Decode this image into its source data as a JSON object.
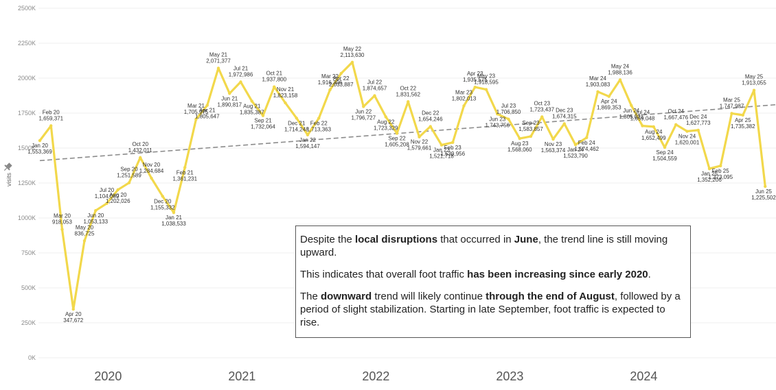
{
  "chart_data": {
    "type": "line",
    "ylabel": "visits",
    "ylim": [
      0,
      2500000
    ],
    "yticks": [
      "0K",
      "250K",
      "500K",
      "750K",
      "1000K",
      "1250K",
      "1500K",
      "1750K",
      "2000K",
      "2250K",
      "2500K"
    ],
    "x_year_labels": [
      "2020",
      "2021",
      "2022",
      "2023",
      "2024"
    ],
    "line_color": "#f2d84b",
    "trend_color": "#8c8c8c",
    "trend_line": {
      "start": 1410000,
      "end": 1810000
    },
    "series": [
      {
        "name": "visits",
        "points": [
          {
            "label": "Jan 20",
            "value": "1,553,369",
            "v": 1553369
          },
          {
            "label": "Feb 20",
            "value": "1,659,371",
            "v": 1659371
          },
          {
            "label": "Mar 20",
            "value": "918,053",
            "v": 918053
          },
          {
            "label": "Apr 20",
            "value": "347,672",
            "v": 347672
          },
          {
            "label": "May 20",
            "value": "836,725",
            "v": 836725
          },
          {
            "label": "Jun 20",
            "value": "1,053,133",
            "v": 1053133
          },
          {
            "label": "Jul 20",
            "value": "1,104,089",
            "v": 1104089
          },
          {
            "label": "Aug 20",
            "value": "1,202,026",
            "v": 1202026
          },
          {
            "label": "Sep 20",
            "value": "1,251,589",
            "v": 1251589
          },
          {
            "label": "Oct 20",
            "value": "1,432,011",
            "v": 1432011
          },
          {
            "label": "Nov 20",
            "value": "1,284,684",
            "v": 1284684
          },
          {
            "label": "Dec 20",
            "value": "1,155,332",
            "v": 1155332
          },
          {
            "label": "Jan 21",
            "value": "1,038,533",
            "v": 1038533
          },
          {
            "label": "Feb 21",
            "value": "1,361,231",
            "v": 1361231
          },
          {
            "label": "Mar 21",
            "value": "1,705,975",
            "v": 1705975
          },
          {
            "label": "Apr 21",
            "value": "1,805,647",
            "v": 1805647
          },
          {
            "label": "May 21",
            "value": "2,071,377",
            "v": 2071377
          },
          {
            "label": "Jun 21",
            "value": "1,890,817",
            "v": 1890817
          },
          {
            "label": "Jul 21",
            "value": "1,972,986",
            "v": 1972986
          },
          {
            "label": "Aug 21",
            "value": "1,835,387",
            "v": 1835387
          },
          {
            "label": "Sep 21",
            "value": "1,732,064",
            "v": 1732064
          },
          {
            "label": "Oct 21",
            "value": "1,937,800",
            "v": 1937800
          },
          {
            "label": "Nov 21",
            "value": "1,823,158",
            "v": 1823158
          },
          {
            "label": "Dec 21",
            "value": "1,714,248",
            "v": 1714248
          },
          {
            "label": "Jan 22",
            "value": "1,594,147",
            "v": 1594147
          },
          {
            "label": "Feb 22",
            "value": "1,713,363",
            "v": 1713363
          },
          {
            "label": "Mar 22",
            "value": "1,916,306",
            "v": 1916306
          },
          {
            "label": "Apr 22",
            "value": "2,033,887",
            "v": 2033887
          },
          {
            "label": "May 22",
            "value": "2,113,630",
            "v": 2113630
          },
          {
            "label": "Jun 22",
            "value": "1,796,727",
            "v": 1796727
          },
          {
            "label": "Jul 22",
            "value": "1,874,657",
            "v": 1874657
          },
          {
            "label": "Aug 22",
            "value": "1,723,329",
            "v": 1723329
          },
          {
            "label": "Sep 22",
            "value": "1,605,208",
            "v": 1605208
          },
          {
            "label": "Oct 22",
            "value": "1,831,562",
            "v": 1831562
          },
          {
            "label": "Nov 22",
            "value": "1,579,661",
            "v": 1579661
          },
          {
            "label": "Dec 22",
            "value": "1,654,246",
            "v": 1654246
          },
          {
            "label": "Jan 23",
            "value": "1,521,718",
            "v": 1521718
          },
          {
            "label": "Feb 23",
            "value": "1,539,956",
            "v": 1539956
          },
          {
            "label": "Mar 23",
            "value": "1,802,013",
            "v": 1802013
          },
          {
            "label": "Apr 23",
            "value": "1,935,575",
            "v": 1935575
          },
          {
            "label": "May 23",
            "value": "1,918,595",
            "v": 1918595
          },
          {
            "label": "Jun 23",
            "value": "1,743,756",
            "v": 1743756
          },
          {
            "label": "Jul 23",
            "value": "1,706,850",
            "v": 1706850
          },
          {
            "label": "Aug 23",
            "value": "1,568,060",
            "v": 1568060
          },
          {
            "label": "Sep 23",
            "value": "1,583,857",
            "v": 1583857
          },
          {
            "label": "Oct 23",
            "value": "1,723,437",
            "v": 1723437
          },
          {
            "label": "Nov 23",
            "value": "1,563,374",
            "v": 1563374
          },
          {
            "label": "Dec 23",
            "value": "1,674,315",
            "v": 1674315
          },
          {
            "label": "Jan 24",
            "value": "1,523,790",
            "v": 1523790
          },
          {
            "label": "Feb 24",
            "value": "1,574,462",
            "v": 1574462
          },
          {
            "label": "Mar 24",
            "value": "1,903,083",
            "v": 1903083
          },
          {
            "label": "Apr 24",
            "value": "1,869,353",
            "v": 1869353
          },
          {
            "label": "May 24",
            "value": "1,988,136",
            "v": 1988136
          },
          {
            "label": "Jun 24",
            "value": "1,805,031",
            "v": 1805031
          },
          {
            "label": "Jul 24",
            "value": "1,659,048",
            "v": 1659048
          },
          {
            "label": "Aug 24",
            "value": "1,652,499",
            "v": 1652499
          },
          {
            "label": "Sep 24",
            "value": "1,504,559",
            "v": 1504559
          },
          {
            "label": "Oct 24",
            "value": "1,667,476",
            "v": 1667476
          },
          {
            "label": "Nov 24",
            "value": "1,620,001",
            "v": 1620001
          },
          {
            "label": "Dec 24",
            "value": "1,627,773",
            "v": 1627773
          },
          {
            "label": "Jan 25",
            "value": "1,352,206",
            "v": 1352206
          },
          {
            "label": "Feb 25",
            "value": "1,373,095",
            "v": 1373095
          },
          {
            "label": "Mar 25",
            "value": "1,747,987",
            "v": 1747987
          },
          {
            "label": "Apr 25",
            "value": "1,735,382",
            "v": 1735382
          },
          {
            "label": "May 25",
            "value": "1,913,055",
            "v": 1913055
          },
          {
            "label": "Jun 25",
            "value": "1,225,502",
            "v": 1225502
          }
        ]
      }
    ]
  },
  "annotation": {
    "p1": {
      "a": "Despite the ",
      "b": "local disruptions",
      "c": " that occurred in ",
      "d": "June",
      "e": ", the trend line is still moving upward."
    },
    "p2": {
      "a": "This indicates that overall foot traffic ",
      "b": "has been increasing since early 2020",
      "c": "."
    },
    "p3": {
      "a": "The ",
      "b": "downward",
      "c": " trend will likely continue ",
      "d": "through the end of August",
      "e": ", followed by a period of slight stabilization. Starting in late September, foot traffic is expected to rise."
    }
  }
}
